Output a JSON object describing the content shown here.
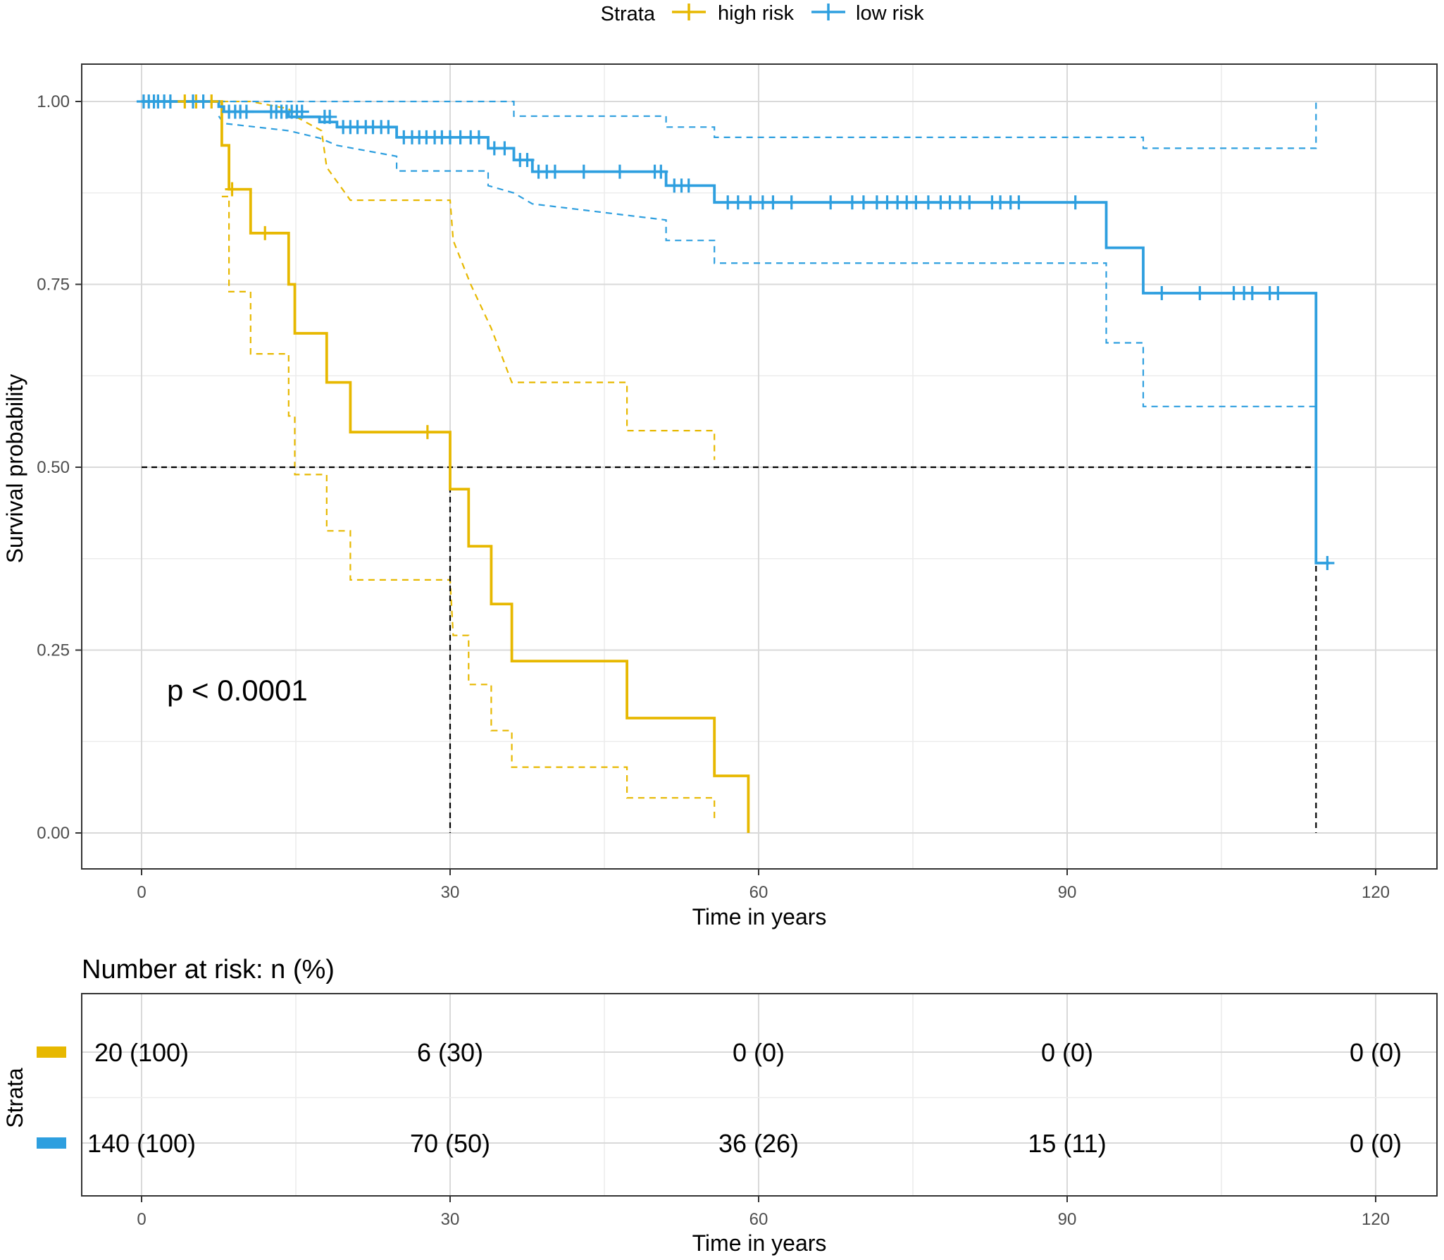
{
  "chart_data": {
    "type": "line",
    "subtype": "kaplan-meier",
    "legend": {
      "title": "Strata",
      "placement": "top",
      "entries": [
        "high risk",
        "low risk"
      ]
    },
    "colors": {
      "high risk": "#E7B800",
      "low risk": "#2E9FDF",
      "median_line": "#000000",
      "panel_border": "#333333",
      "grid": "#d9d9d9"
    },
    "xlabel": "Time in years",
    "ylabel": "Survival probability",
    "xlim": [
      -10,
      122
    ],
    "ylim": [
      -0.05,
      1.05
    ],
    "xticks": [
      0,
      30,
      60,
      90,
      120
    ],
    "xtick_labels": [
      "0",
      "30",
      "60",
      "90",
      "120"
    ],
    "yticks": [
      0.0,
      0.25,
      0.5,
      0.75,
      1.0
    ],
    "ytick_labels": [
      "0.00",
      "0.25",
      "0.50",
      "0.75",
      "1.00"
    ],
    "grid": true,
    "pvalue_text": "p < 0.0001",
    "median_survival": {
      "y": 0.5,
      "high risk": 30,
      "low risk": 114.2
    },
    "series": [
      {
        "name": "high risk",
        "color": "#E7B800",
        "steps": [
          [
            0,
            1.0
          ],
          [
            7.8,
            1.0
          ],
          [
            7.8,
            0.94
          ],
          [
            8.5,
            0.94
          ],
          [
            8.5,
            0.88
          ],
          [
            10.6,
            0.88
          ],
          [
            10.6,
            0.82
          ],
          [
            14.3,
            0.82
          ],
          [
            14.3,
            0.75
          ],
          [
            14.9,
            0.75
          ],
          [
            14.9,
            0.683
          ],
          [
            18.0,
            0.683
          ],
          [
            18.0,
            0.616
          ],
          [
            20.3,
            0.616
          ],
          [
            20.3,
            0.548
          ],
          [
            30.0,
            0.548
          ],
          [
            30.0,
            0.47
          ],
          [
            31.8,
            0.47
          ],
          [
            31.8,
            0.392
          ],
          [
            34.0,
            0.392
          ],
          [
            34.0,
            0.313
          ],
          [
            36.0,
            0.313
          ],
          [
            36.0,
            0.235
          ],
          [
            47.2,
            0.235
          ],
          [
            47.2,
            0.157
          ],
          [
            55.7,
            0.157
          ],
          [
            55.7,
            0.078
          ],
          [
            59.0,
            0.078
          ],
          [
            59.0,
            0.0
          ]
        ],
        "upper": [
          [
            7.8,
            1.0
          ],
          [
            8.5,
            1.0
          ],
          [
            10.6,
            1.0
          ],
          [
            14.3,
            0.99
          ],
          [
            14.9,
            0.98
          ],
          [
            17.5,
            0.96
          ],
          [
            18.0,
            0.91
          ],
          [
            20.3,
            0.865
          ],
          [
            30.0,
            0.865
          ],
          [
            30.3,
            0.81
          ],
          [
            32.0,
            0.75
          ],
          [
            34.0,
            0.69
          ],
          [
            36.0,
            0.616
          ],
          [
            47.2,
            0.616
          ],
          [
            47.2,
            0.55
          ],
          [
            55.7,
            0.55
          ],
          [
            55.7,
            0.51
          ]
        ],
        "lower": [
          [
            7.8,
            0.87
          ],
          [
            8.5,
            0.87
          ],
          [
            8.5,
            0.74
          ],
          [
            10.6,
            0.74
          ],
          [
            10.6,
            0.655
          ],
          [
            14.3,
            0.655
          ],
          [
            14.3,
            0.57
          ],
          [
            14.9,
            0.57
          ],
          [
            14.9,
            0.49
          ],
          [
            18.0,
            0.49
          ],
          [
            18.0,
            0.413
          ],
          [
            20.3,
            0.413
          ],
          [
            20.3,
            0.346
          ],
          [
            30.0,
            0.346
          ],
          [
            30.3,
            0.27
          ],
          [
            31.8,
            0.27
          ],
          [
            31.8,
            0.203
          ],
          [
            34.0,
            0.203
          ],
          [
            34.0,
            0.14
          ],
          [
            36.0,
            0.14
          ],
          [
            36.0,
            0.09
          ],
          [
            47.2,
            0.09
          ],
          [
            47.2,
            0.048
          ],
          [
            55.7,
            0.048
          ],
          [
            55.7,
            0.015
          ]
        ],
        "censored": [
          [
            4.2,
            1.0
          ],
          [
            5.3,
            1.0
          ],
          [
            6.8,
            1.0
          ],
          [
            8.8,
            0.88
          ],
          [
            12.0,
            0.82
          ],
          [
            27.8,
            0.548
          ]
        ]
      },
      {
        "name": "low risk",
        "color": "#2E9FDF",
        "steps": [
          [
            0,
            1.0
          ],
          [
            7.5,
            1.0
          ],
          [
            7.5,
            0.993
          ],
          [
            8.0,
            0.993
          ],
          [
            8.0,
            0.986
          ],
          [
            14.3,
            0.986
          ],
          [
            14.3,
            0.979
          ],
          [
            17.3,
            0.979
          ],
          [
            17.3,
            0.972
          ],
          [
            19.0,
            0.972
          ],
          [
            19.0,
            0.965
          ],
          [
            24.8,
            0.965
          ],
          [
            24.8,
            0.951
          ],
          [
            33.7,
            0.951
          ],
          [
            33.7,
            0.936
          ],
          [
            36.2,
            0.936
          ],
          [
            36.2,
            0.92
          ],
          [
            38.0,
            0.92
          ],
          [
            38.0,
            0.904
          ],
          [
            51.0,
            0.904
          ],
          [
            51.0,
            0.885
          ],
          [
            55.7,
            0.885
          ],
          [
            55.7,
            0.862
          ],
          [
            93.8,
            0.862
          ],
          [
            93.8,
            0.8
          ],
          [
            97.4,
            0.8
          ],
          [
            97.4,
            0.738
          ],
          [
            114.2,
            0.738
          ],
          [
            114.2,
            0.369
          ],
          [
            115.5,
            0.369
          ]
        ],
        "upper": [
          [
            7.5,
            1.0
          ],
          [
            36.2,
            1.0
          ],
          [
            36.2,
            0.98
          ],
          [
            51.0,
            0.98
          ],
          [
            51.0,
            0.965
          ],
          [
            55.7,
            0.965
          ],
          [
            55.7,
            0.951
          ],
          [
            93.8,
            0.951
          ],
          [
            97.4,
            0.951
          ],
          [
            97.4,
            0.936
          ],
          [
            114.2,
            0.936
          ],
          [
            114.2,
            1.0
          ]
        ],
        "lower": [
          [
            7.5,
            0.98
          ],
          [
            8.0,
            0.97
          ],
          [
            14.3,
            0.96
          ],
          [
            17.3,
            0.95
          ],
          [
            19.0,
            0.94
          ],
          [
            24.8,
            0.925
          ],
          [
            24.8,
            0.905
          ],
          [
            33.7,
            0.905
          ],
          [
            33.7,
            0.885
          ],
          [
            36.2,
            0.875
          ],
          [
            38.0,
            0.86
          ],
          [
            51.0,
            0.838
          ],
          [
            51.0,
            0.81
          ],
          [
            55.7,
            0.81
          ],
          [
            55.7,
            0.779
          ],
          [
            93.8,
            0.779
          ],
          [
            93.8,
            0.67
          ],
          [
            97.4,
            0.67
          ],
          [
            97.4,
            0.583
          ],
          [
            114.2,
            0.583
          ]
        ],
        "censored": [
          [
            0.2,
            1.0
          ],
          [
            0.7,
            1.0
          ],
          [
            1.2,
            1.0
          ],
          [
            1.6,
            1.0
          ],
          [
            2.2,
            1.0
          ],
          [
            2.8,
            1.0
          ],
          [
            5.0,
            1.0
          ],
          [
            6.0,
            1.0
          ],
          [
            8.5,
            0.986
          ],
          [
            9.1,
            0.986
          ],
          [
            9.6,
            0.986
          ],
          [
            10.2,
            0.986
          ],
          [
            12.6,
            0.986
          ],
          [
            13.1,
            0.986
          ],
          [
            13.6,
            0.986
          ],
          [
            14.1,
            0.986
          ],
          [
            14.6,
            0.986
          ],
          [
            15.1,
            0.986
          ],
          [
            15.6,
            0.986
          ],
          [
            17.8,
            0.979
          ],
          [
            18.3,
            0.979
          ],
          [
            19.6,
            0.965
          ],
          [
            20.3,
            0.965
          ],
          [
            21.0,
            0.965
          ],
          [
            21.8,
            0.965
          ],
          [
            22.5,
            0.965
          ],
          [
            23.3,
            0.965
          ],
          [
            24.0,
            0.965
          ],
          [
            25.5,
            0.951
          ],
          [
            26.3,
            0.951
          ],
          [
            27.0,
            0.951
          ],
          [
            27.7,
            0.951
          ],
          [
            28.5,
            0.951
          ],
          [
            29.2,
            0.951
          ],
          [
            30.0,
            0.951
          ],
          [
            31.0,
            0.951
          ],
          [
            32.0,
            0.951
          ],
          [
            32.8,
            0.951
          ],
          [
            34.3,
            0.936
          ],
          [
            35.3,
            0.936
          ],
          [
            36.8,
            0.92
          ],
          [
            37.5,
            0.92
          ],
          [
            38.6,
            0.904
          ],
          [
            39.4,
            0.904
          ],
          [
            40.2,
            0.904
          ],
          [
            43.0,
            0.904
          ],
          [
            46.5,
            0.904
          ],
          [
            49.9,
            0.904
          ],
          [
            50.5,
            0.904
          ],
          [
            51.8,
            0.885
          ],
          [
            52.5,
            0.885
          ],
          [
            53.2,
            0.885
          ],
          [
            57.0,
            0.862
          ],
          [
            58.0,
            0.862
          ],
          [
            59.2,
            0.862
          ],
          [
            60.4,
            0.862
          ],
          [
            61.4,
            0.862
          ],
          [
            63.2,
            0.862
          ],
          [
            67.0,
            0.862
          ],
          [
            69.1,
            0.862
          ],
          [
            70.2,
            0.862
          ],
          [
            71.5,
            0.862
          ],
          [
            72.5,
            0.862
          ],
          [
            73.5,
            0.862
          ],
          [
            74.4,
            0.862
          ],
          [
            75.3,
            0.862
          ],
          [
            76.5,
            0.862
          ],
          [
            77.7,
            0.862
          ],
          [
            78.6,
            0.862
          ],
          [
            79.6,
            0.862
          ],
          [
            80.5,
            0.862
          ],
          [
            82.7,
            0.862
          ],
          [
            83.5,
            0.862
          ],
          [
            84.5,
            0.862
          ],
          [
            85.3,
            0.862
          ],
          [
            90.8,
            0.862
          ],
          [
            99.2,
            0.738
          ],
          [
            102.9,
            0.738
          ],
          [
            106.2,
            0.738
          ],
          [
            107.2,
            0.738
          ],
          [
            108.0,
            0.738
          ],
          [
            109.7,
            0.738
          ],
          [
            110.5,
            0.738
          ],
          [
            115.3,
            0.369
          ]
        ]
      }
    ]
  },
  "risk_table": {
    "title": "Number at risk: n (%)",
    "ylabel": "Strata",
    "xlabel": "Time in years",
    "times": [
      0,
      30,
      60,
      90,
      120
    ],
    "time_labels": [
      "0",
      "30",
      "60",
      "90",
      "120"
    ],
    "rows": [
      {
        "strata": "high risk",
        "color": "#E7B800",
        "values": [
          "20 (100)",
          "6 (30)",
          "0 (0)",
          "0 (0)",
          "0 (0)"
        ]
      },
      {
        "strata": "low risk",
        "color": "#2E9FDF",
        "values": [
          "140 (100)",
          "70 (50)",
          "36 (26)",
          "15 (11)",
          "0 (0)"
        ]
      }
    ]
  }
}
